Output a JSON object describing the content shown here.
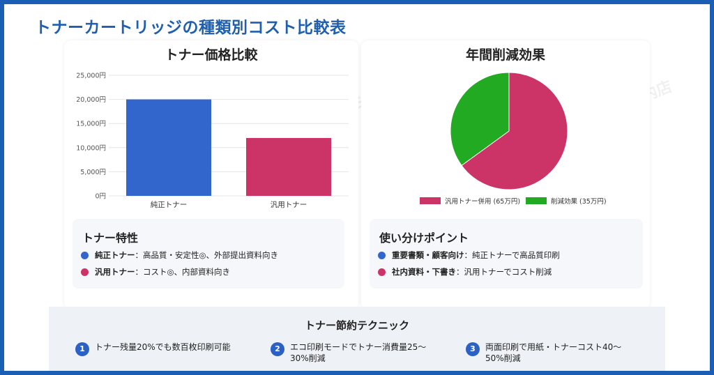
{
  "page_title": "トナーカートリッジの種類別コスト比較表",
  "watermark": "MBE関内店",
  "bar_card": {
    "title": "トナー価格比較"
  },
  "pie_card": {
    "title": "年間削減効果"
  },
  "chart_data": [
    {
      "type": "bar",
      "title": "トナー価格比較",
      "categories": [
        "純正トナー",
        "汎用トナー"
      ],
      "values": [
        20000,
        12000
      ],
      "colors": [
        "#3366cc",
        "#cc3366"
      ],
      "ylim": [
        0,
        25000
      ],
      "yticks": [
        "0円",
        "5,000円",
        "10,000円",
        "15,000円",
        "20,000円",
        "25,000円"
      ],
      "ytick_values": [
        0,
        5000,
        10000,
        15000,
        20000,
        25000
      ],
      "grid": true,
      "legend": "none"
    },
    {
      "type": "pie",
      "title": "年間削減効果",
      "labels": [
        "汎用トナー併用 (65万円)",
        "削減効果 (35万円)"
      ],
      "values": [
        65,
        35
      ],
      "colors": [
        "#cc3366",
        "#22aa22"
      ],
      "legend": "bottom"
    }
  ],
  "toner_features": {
    "title": "トナー特性",
    "items": [
      {
        "label": "純正トナー",
        "text": "：高品質・安定性◎、外部提出資料向き",
        "color": "#3366cc"
      },
      {
        "label": "汎用トナー",
        "text": "：コスト◎、内部資料向き",
        "color": "#cc3366"
      }
    ]
  },
  "usage_points": {
    "title": "使い分けポイント",
    "items": [
      {
        "label": "重要書類・顧客向け",
        "text": "：純正トナーで高品質印刷",
        "color": "#3366cc"
      },
      {
        "label": "社内資料・下書き",
        "text": "：汎用トナーでコスト削減",
        "color": "#cc3366"
      }
    ]
  },
  "techniques": {
    "title": "トナー節約テクニック",
    "items": [
      {
        "num": "1",
        "text": "トナー残量20%でも数百枚印刷可能"
      },
      {
        "num": "2",
        "text": "エコ印刷モードでトナー消費量25〜30%削減"
      },
      {
        "num": "3",
        "text": "両面印刷で用紙・トナーコスト40〜50%削減"
      }
    ]
  }
}
